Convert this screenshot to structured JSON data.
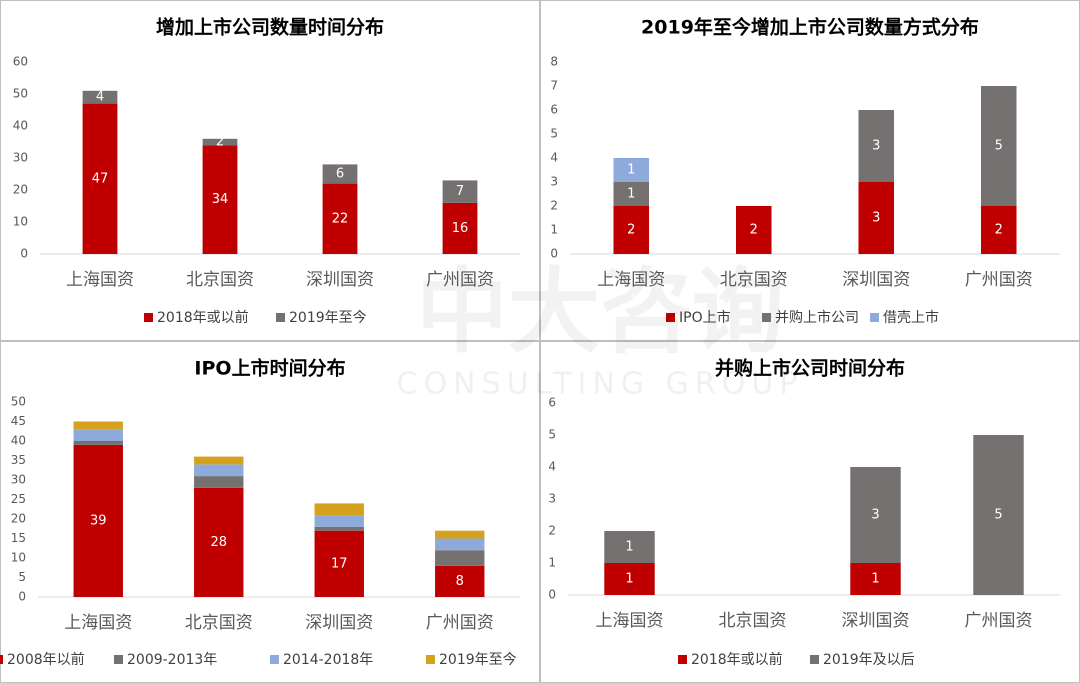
{
  "watermark": {
    "brand": "中大咨询",
    "sub": "CONSULTING GROUP"
  },
  "chart_data": [
    {
      "type": "stacked-bar",
      "title": "增加上市公司数量时间分布",
      "categories": [
        "上海国资",
        "北京国资",
        "深圳国资",
        "广州国资"
      ],
      "series": [
        {
          "name": "2018年或以前",
          "color": "#c00000",
          "values": [
            47,
            34,
            22,
            16
          ]
        },
        {
          "name": "2019年至今",
          "color": "#767171",
          "values": [
            4,
            2,
            6,
            7
          ]
        }
      ],
      "ylim": [
        0,
        60
      ],
      "yticks": [
        0,
        10,
        20,
        30,
        40,
        50,
        60
      ],
      "grid": false,
      "legend": "bottom"
    },
    {
      "type": "stacked-bar",
      "title": "2019年至今增加上市公司数量方式分布",
      "categories": [
        "上海国资",
        "北京国资",
        "深圳国资",
        "广州国资"
      ],
      "series": [
        {
          "name": "IPO上市",
          "color": "#c00000",
          "values": [
            2,
            2,
            3,
            2
          ]
        },
        {
          "name": "并购上市公司",
          "color": "#767171",
          "values": [
            1,
            0,
            3,
            5
          ]
        },
        {
          "name": "借壳上市",
          "color": "#8eaadb",
          "values": [
            1,
            0,
            0,
            0
          ]
        }
      ],
      "ylim": [
        0,
        8
      ],
      "yticks": [
        0,
        1,
        2,
        3,
        4,
        5,
        6,
        7,
        8
      ],
      "grid": false,
      "legend": "bottom"
    },
    {
      "type": "stacked-bar",
      "title": "IPO上市时间分布",
      "categories": [
        "上海国资",
        "北京国资",
        "深圳国资",
        "广州国资"
      ],
      "series": [
        {
          "name": "2008年以前",
          "color": "#c00000",
          "values": [
            39,
            28,
            17,
            8
          ],
          "labels": true
        },
        {
          "name": "2009-2013年",
          "color": "#767171",
          "values": [
            1,
            3,
            1,
            4
          ],
          "labels": false
        },
        {
          "name": "2014-2018年",
          "color": "#8eaadb",
          "values": [
            3,
            3,
            3,
            3
          ],
          "labels": false
        },
        {
          "name": "2019年至今",
          "color": "#d6a21e",
          "values": [
            2,
            2,
            3,
            2
          ],
          "labels": false
        }
      ],
      "ylim": [
        0,
        50
      ],
      "yticks": [
        0,
        5,
        10,
        15,
        20,
        25,
        30,
        35,
        40,
        45,
        50
      ],
      "grid": false,
      "legend": "bottom"
    },
    {
      "type": "stacked-bar",
      "title": "并购上市公司时间分布",
      "categories": [
        "上海国资",
        "北京国资",
        "深圳国资",
        "广州国资"
      ],
      "series": [
        {
          "name": "2018年或以前",
          "color": "#c00000",
          "values": [
            1,
            0,
            1,
            0
          ]
        },
        {
          "name": "2019年及以后",
          "color": "#767171",
          "values": [
            1,
            0,
            3,
            5
          ]
        }
      ],
      "ylim": [
        0,
        6
      ],
      "yticks": [
        0,
        1,
        2,
        3,
        4,
        5,
        6
      ],
      "grid": false,
      "legend": "bottom"
    }
  ]
}
